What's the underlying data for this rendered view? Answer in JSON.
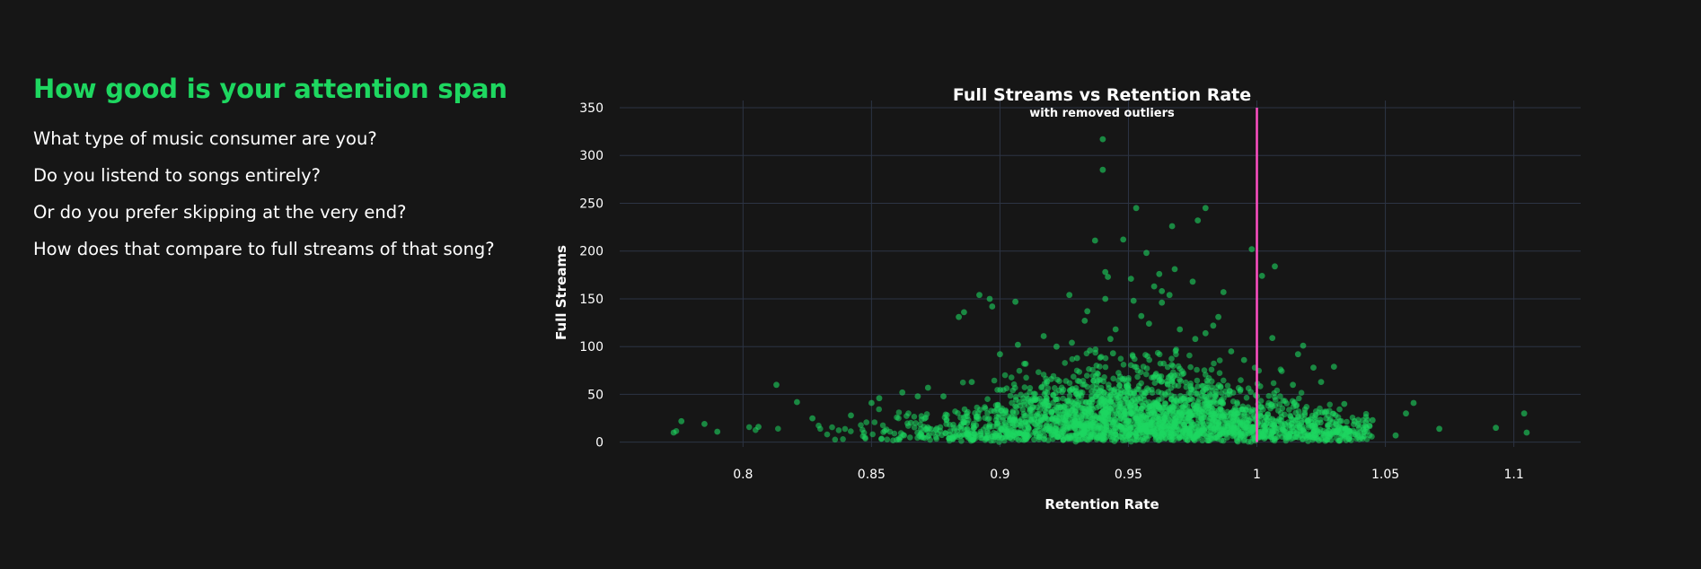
{
  "left_panel": {
    "heading": "How good is your attention span",
    "questions": [
      "What type of music consumer are you?",
      "Do you listend to songs entirely?",
      "Or do you prefer skipping at the very end?",
      "How does that compare to full streams of that song?"
    ]
  },
  "colors": {
    "background": "#161616",
    "accent": "#1ed760",
    "marker": "#1ed760",
    "reference_line": "#ff4fc3",
    "grid": "#2c3444",
    "text": "#ffffff"
  },
  "chart_data": {
    "type": "scatter",
    "title": "Full Streams vs Retention Rate",
    "subtitle": "with removed outliers",
    "xlabel": "Retention Rate",
    "ylabel": "Full Streams",
    "xlim": [
      0.752,
      1.126
    ],
    "ylim": [
      -5,
      350
    ],
    "x_ticks": [
      0.8,
      0.85,
      0.9,
      0.95,
      1.0,
      1.05,
      1.1
    ],
    "x_tick_labels": [
      "0.8",
      "0.85",
      "0.9",
      "0.95",
      "1",
      "1.05",
      "1.1"
    ],
    "y_ticks": [
      0,
      50,
      100,
      150,
      200,
      250,
      300,
      350
    ],
    "y_tick_labels": [
      "0",
      "50",
      "100",
      "150",
      "200",
      "250",
      "300",
      "350"
    ],
    "grid": true,
    "reference_line": {
      "x": 1.0,
      "y_range": [
        0,
        350
      ]
    },
    "points": {
      "x": [
        0.94,
        0.94,
        0.953,
        0.98,
        0.977,
        0.967,
        0.998,
        0.937,
        0.948,
        1.007,
        0.957,
        1.002,
        0.941,
        0.962,
        0.968,
        0.951,
        0.975,
        0.96,
        0.963,
        0.942,
        0.966,
        0.987,
        0.927,
        0.941,
        0.952,
        0.963,
        0.985,
        0.983,
        0.955,
        0.934,
        0.933,
        0.945,
        0.892,
        0.896,
        0.884,
        0.886,
        0.897,
        0.906,
        0.943,
        0.917,
        0.922,
        0.907,
        0.935,
        0.928,
        0.9,
        1.006,
        1.018,
        1.016,
        1.022,
        1.03,
        1.025,
        1.014,
        1.034,
        1.038,
        1.061,
        1.058,
        1.071,
        1.093,
        1.104,
        1.105,
        1.045,
        1.054,
        1.028,
        1.031,
        0.813,
        0.821,
        0.853,
        0.868,
        0.878,
        0.827,
        0.842,
        0.806,
        0.79,
        0.776,
        0.785,
        0.773,
        0.98,
        0.99,
        0.995,
        0.97,
        0.976,
        0.958,
        0.944,
        0.93,
        0.91,
        0.92,
        0.889,
        0.872,
        0.862,
        0.85
      ],
      "y": [
        317,
        285,
        245,
        245,
        232,
        226,
        202,
        211,
        212,
        184,
        198,
        174,
        178,
        176,
        181,
        171,
        168,
        163,
        158,
        173,
        154,
        157,
        154,
        150,
        148,
        146,
        131,
        122,
        132,
        137,
        127,
        118,
        154,
        150,
        131,
        136,
        142,
        147,
        108,
        111,
        100,
        102,
        96,
        104,
        92,
        109,
        101,
        92,
        78,
        79,
        63,
        60,
        40,
        22,
        41,
        30,
        14,
        15,
        30,
        10,
        23,
        7,
        18,
        10,
        60,
        42,
        46,
        48,
        48,
        25,
        28,
        16,
        11,
        22,
        19,
        10,
        114,
        95,
        86,
        118,
        108,
        124,
        93,
        88,
        82,
        66,
        63,
        57,
        52,
        41
      ]
    },
    "dense_cloud": {
      "note": "remaining points form a dense band between retention 0.77 and 1.04 with full streams mostly below 60, peaking near retention 0.93-0.99",
      "x_range": [
        0.77,
        1.045
      ],
      "y_range": [
        0,
        100
      ],
      "count": 2400
    }
  }
}
